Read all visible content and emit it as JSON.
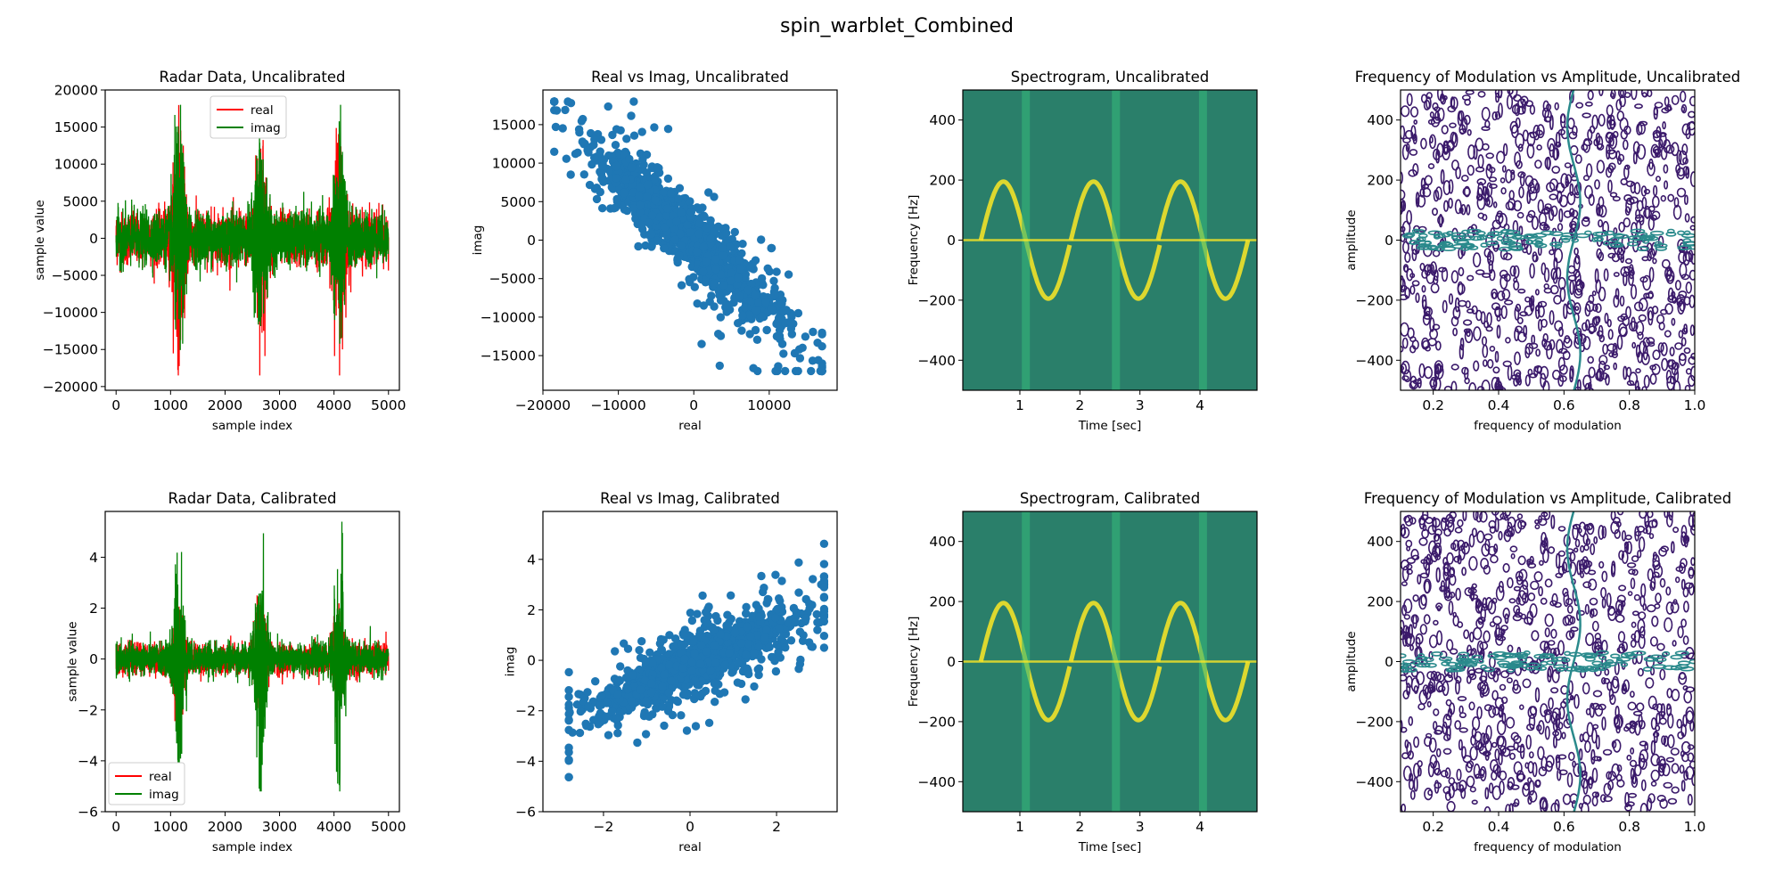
{
  "figure": {
    "title": "spin_warblet_Combined"
  },
  "colors": {
    "real": "#ff0000",
    "imag": "#008000",
    "scatter": "#1f77b4",
    "contour_dark": "#3b1a6b",
    "contour_teal": "#2a8a8c",
    "spec_base": "#2a7f6a",
    "spec_mid": "#35b779",
    "spec_bright": "#fde725"
  },
  "chart_data": [
    {
      "type": "line",
      "title": "Radar Data, Uncalibrated",
      "xlabel": "sample index",
      "ylabel": "sample value",
      "xlim": [
        -200,
        5200
      ],
      "ylim": [
        -20500,
        20000
      ],
      "xticks": [
        "0",
        "1000",
        "2000",
        "3000",
        "4000",
        "5000"
      ],
      "yticks": [
        "-20000",
        "-15000",
        "-10000",
        "-5000",
        "0",
        "5000",
        "10000",
        "15000",
        "20000"
      ],
      "legend": "top-center",
      "n_samples": 5000,
      "bursts": [
        1150,
        2650,
        4100
      ],
      "series": [
        {
          "name": "real",
          "envelope_peak": 18000,
          "burst_peak_min": -18500
        },
        {
          "name": "imag",
          "envelope_peak": 18000,
          "burst_peak_min": -17500
        }
      ]
    },
    {
      "type": "scatter",
      "title": "Real vs Imag, Uncalibrated",
      "xlabel": "real",
      "ylabel": "imag",
      "xlim": [
        -20000,
        19000
      ],
      "ylim": [
        -19500,
        19500
      ],
      "xticks": [
        "-20000",
        "-10000",
        "0",
        "10000"
      ],
      "yticks": [
        "-15000",
        "-10000",
        "-5000",
        "0",
        "5000",
        "10000",
        "15000"
      ],
      "correlation": "negative",
      "x_range": [
        -18500,
        17000
      ],
      "y_range": [
        -17000,
        18000
      ]
    },
    {
      "type": "heatmap",
      "title": "Spectrogram, Uncalibrated",
      "xlabel": "Time [sec]",
      "ylabel": "Frequency [Hz]",
      "xlim": [
        0.05,
        4.95
      ],
      "ylim": [
        -500,
        500
      ],
      "xticks": [
        "1",
        "2",
        "3",
        "4"
      ],
      "yticks": [
        "-400",
        "-200",
        "0",
        "200",
        "400"
      ],
      "blade_flash_times": [
        1.1,
        2.6,
        4.05
      ],
      "warble_amplitude_hz": 150
    },
    {
      "type": "contour",
      "title": "Frequency of Modulation vs Amplitude, Uncalibrated",
      "xlabel": "frequency of modulation",
      "ylabel": "amplitude",
      "xlim": [
        0.1,
        1.0
      ],
      "ylim": [
        -500,
        500
      ],
      "xticks": [
        "0.2",
        "0.4",
        "0.6",
        "0.8",
        "1.0"
      ],
      "yticks": [
        "-400",
        "-200",
        "0",
        "200",
        "400"
      ]
    },
    {
      "type": "line",
      "title": "Radar Data, Calibrated",
      "xlabel": "sample index",
      "ylabel": "sample value",
      "xlim": [
        -200,
        5200
      ],
      "ylim": [
        -6,
        5.8
      ],
      "xticks": [
        "0",
        "1000",
        "2000",
        "3000",
        "4000",
        "5000"
      ],
      "yticks": [
        "-6",
        "-4",
        "-2",
        "0",
        "2",
        "4"
      ],
      "legend": "lower-left",
      "n_samples": 5000,
      "bursts": [
        1150,
        2650,
        4100
      ],
      "series": [
        {
          "name": "real",
          "envelope_peak": 2.5,
          "burst_peak_min": -2.5
        },
        {
          "name": "imag",
          "envelope_peak": 5.4,
          "burst_peak_min": -5.2
        }
      ]
    },
    {
      "type": "scatter",
      "title": "Real vs Imag, Calibrated",
      "xlabel": "real",
      "ylabel": "imag",
      "xlim": [
        -3.4,
        3.4
      ],
      "ylim": [
        -6,
        5.9
      ],
      "xticks": [
        "-2",
        "0",
        "2"
      ],
      "yticks": [
        "-6",
        "-4",
        "-2",
        "0",
        "2",
        "4"
      ],
      "correlation": "positive",
      "x_range": [
        -2.8,
        3.1
      ],
      "y_range": [
        -5.5,
        5.4
      ]
    },
    {
      "type": "heatmap",
      "title": "Spectrogram, Calibrated",
      "xlabel": "Time [sec]",
      "ylabel": "Frequency [Hz]",
      "xlim": [
        0.05,
        4.95
      ],
      "ylim": [
        -500,
        500
      ],
      "xticks": [
        "1",
        "2",
        "3",
        "4"
      ],
      "yticks": [
        "-400",
        "-200",
        "0",
        "200",
        "400"
      ],
      "blade_flash_times": [
        1.1,
        2.6,
        4.05
      ],
      "warble_amplitude_hz": 150
    },
    {
      "type": "contour",
      "title": "Frequency of Modulation vs Amplitude, Calibrated",
      "xlabel": "frequency of modulation",
      "ylabel": "amplitude",
      "xlim": [
        0.1,
        1.0
      ],
      "ylim": [
        -500,
        500
      ],
      "xticks": [
        "0.2",
        "0.4",
        "0.6",
        "0.8",
        "1.0"
      ],
      "yticks": [
        "-400",
        "-200",
        "0",
        "200",
        "400"
      ]
    }
  ]
}
